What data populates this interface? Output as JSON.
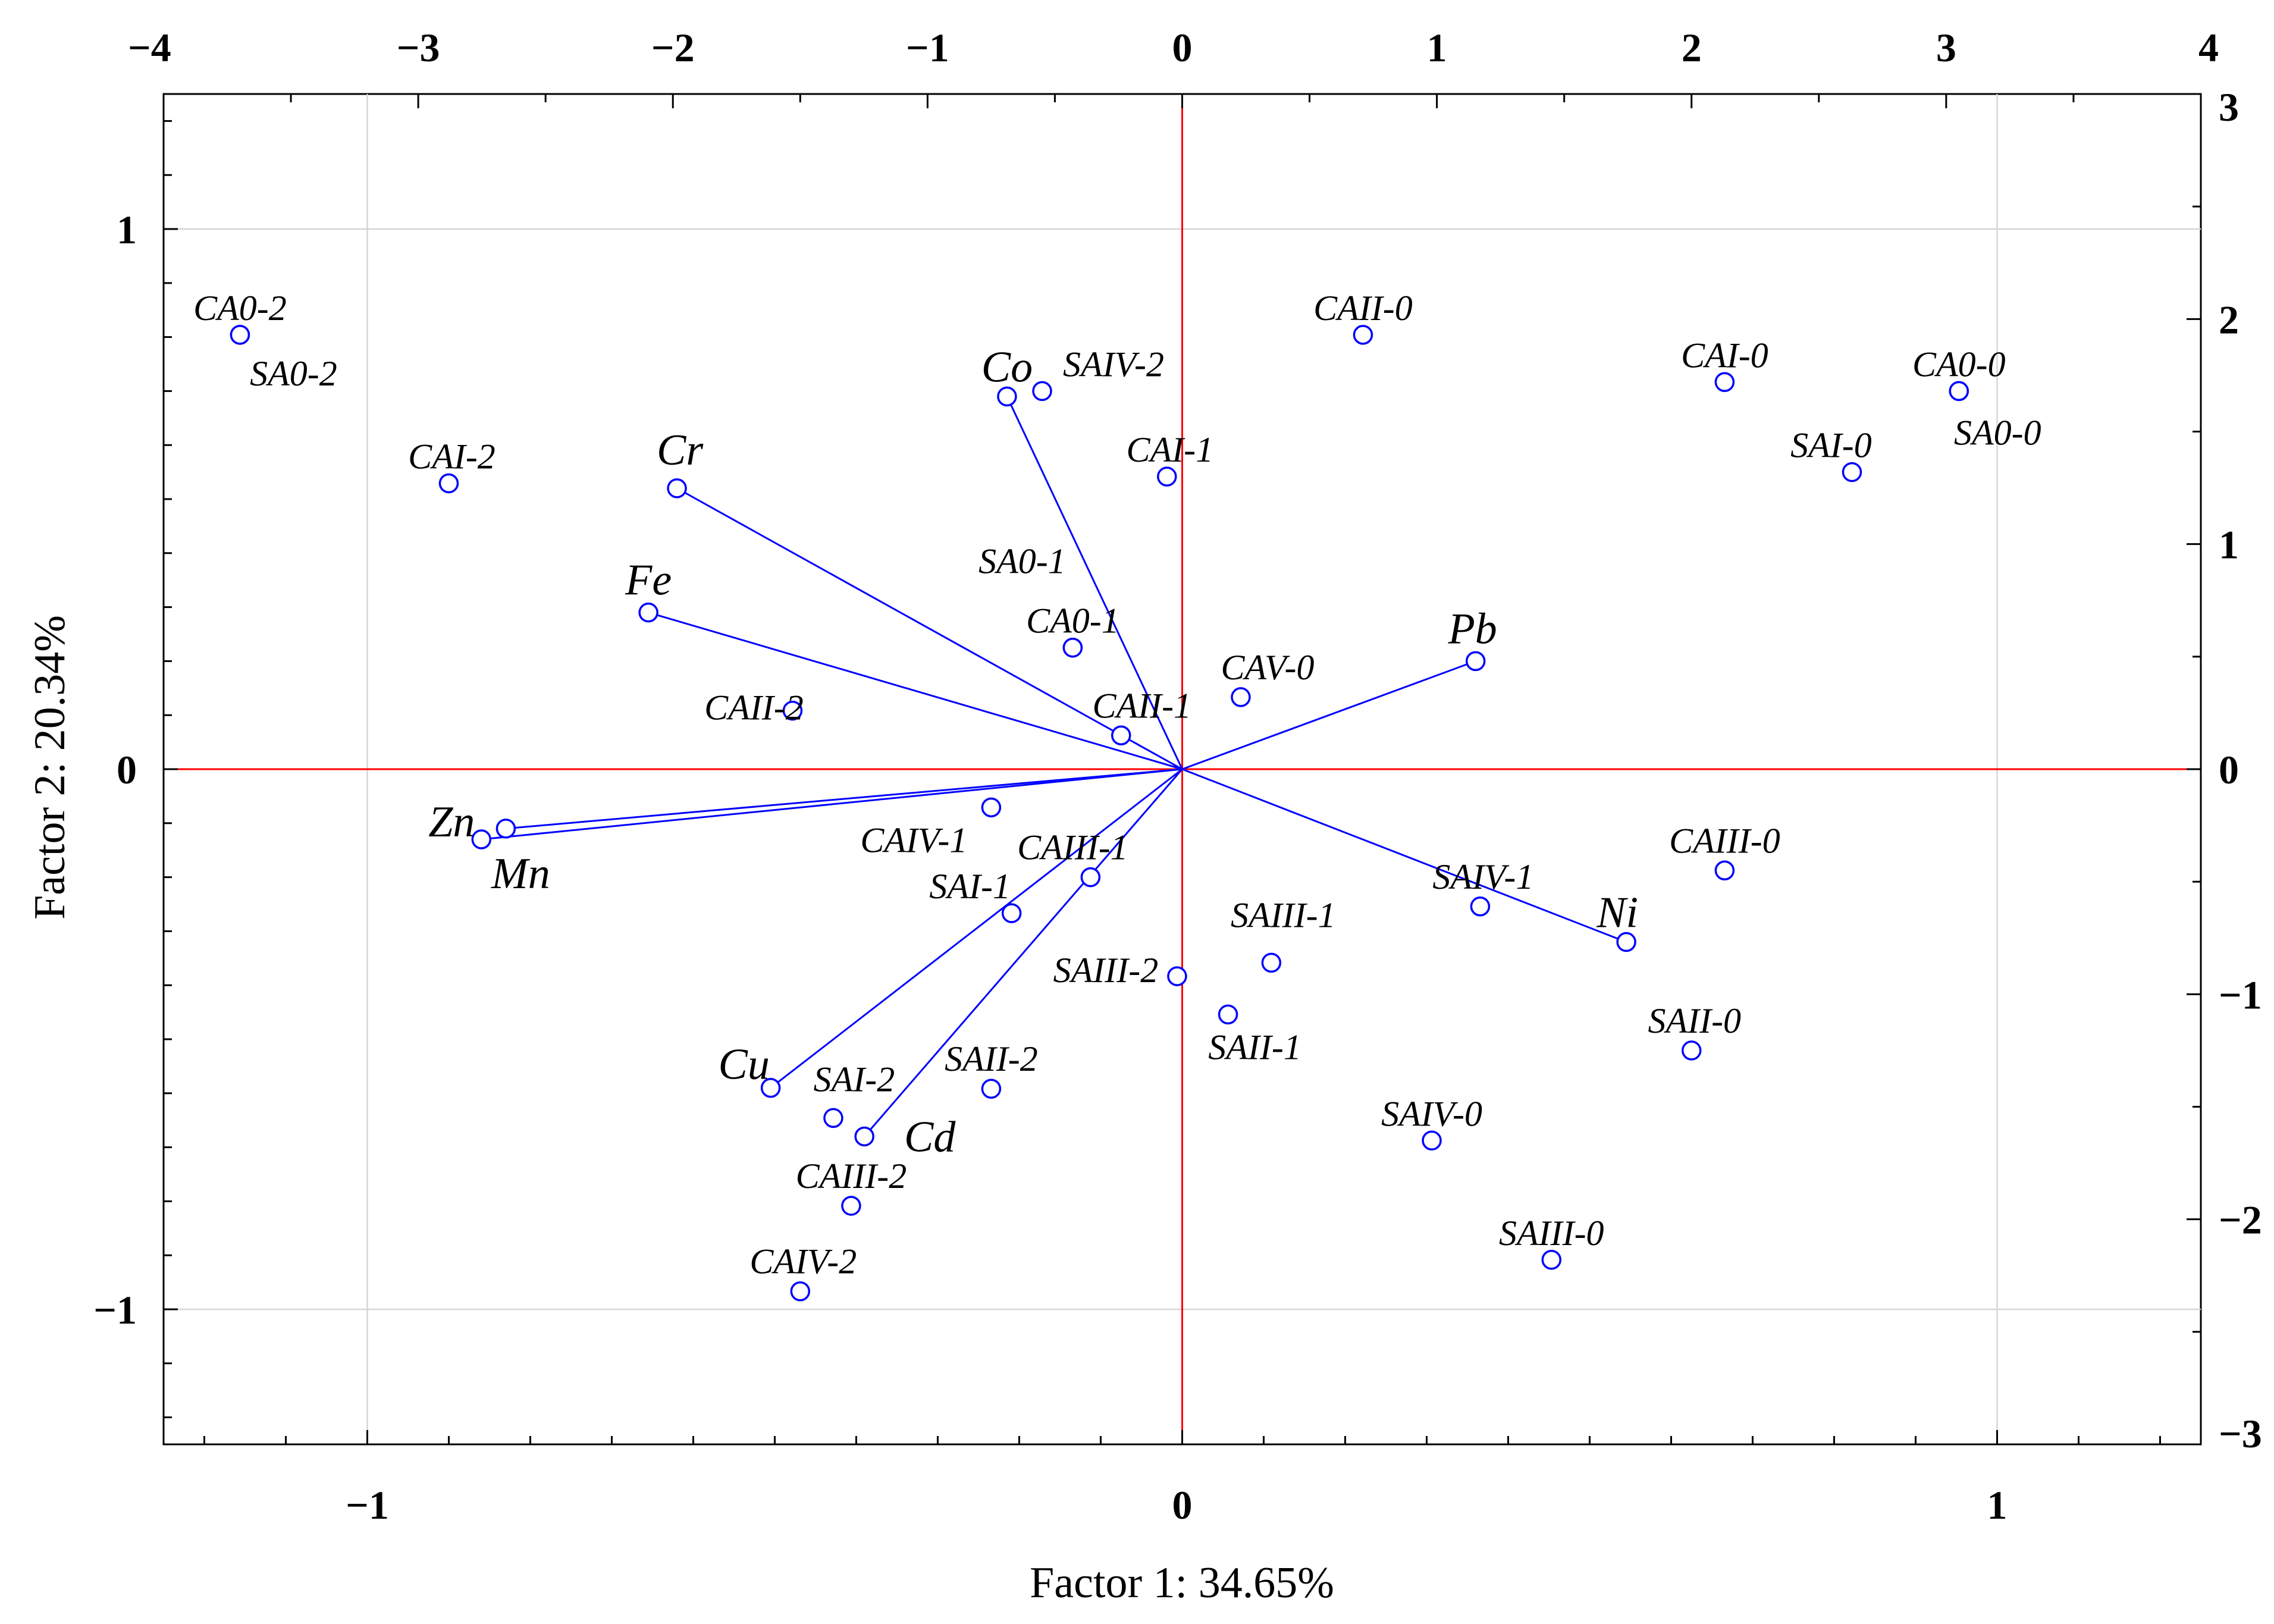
{
  "chart_data": {
    "type": "scatter",
    "subtype": "pca-biplot",
    "xlabel": "Factor 1: 34.65%",
    "ylabel": "Factor 2: 20.34%",
    "xlim": [
      -1.25,
      1.25
    ],
    "ylim": [
      -1.25,
      1.25
    ],
    "x2lim": [
      -4,
      4
    ],
    "y2lim": [
      -3,
      3
    ],
    "bottom_ticks": [
      -1,
      0,
      1
    ],
    "left_ticks": [
      1,
      0,
      -1
    ],
    "top_ticks": [
      -4,
      -3,
      -2,
      -1,
      0,
      1,
      2,
      3,
      4
    ],
    "right_ticks": [
      3,
      2,
      1,
      0,
      -1,
      -2,
      -3
    ],
    "grid": true,
    "zero_lines_color": "#ff0000",
    "vector_color": "#0000ff",
    "marker_color": "#0000ff",
    "variables": [
      {
        "name": "Co",
        "x": -0.215,
        "y": 0.69
      },
      {
        "name": "Cr",
        "x": -0.62,
        "y": 0.52
      },
      {
        "name": "Fe",
        "x": -0.655,
        "y": 0.29
      },
      {
        "name": "Pb",
        "x": 0.36,
        "y": 0.2
      },
      {
        "name": "Zn",
        "x": -0.86,
        "y": -0.13
      },
      {
        "name": "Mn",
        "x": -0.83,
        "y": -0.11
      },
      {
        "name": "Ni",
        "x": 0.545,
        "y": -0.32
      },
      {
        "name": "Cu",
        "x": -0.505,
        "y": -0.59
      },
      {
        "name": "Cd",
        "x": -0.39,
        "y": -0.68
      }
    ],
    "observations": [
      {
        "name": "CA0-2",
        "x": -3.7,
        "y": 1.93
      },
      {
        "name": "SA0-2",
        "x": -3.7,
        "y": 1.93
      },
      {
        "name": "CAI-2",
        "x": -2.88,
        "y": 1.27
      },
      {
        "name": "CAII-2",
        "x": -1.53,
        "y": 0.26
      },
      {
        "name": "SAIV-2",
        "x": -0.55,
        "y": 1.68
      },
      {
        "name": "CAI-1",
        "x": -0.06,
        "y": 1.3
      },
      {
        "name": "SA0-1",
        "x": -0.43,
        "y": 0.54
      },
      {
        "name": "CA0-1",
        "x": -0.43,
        "y": 0.54
      },
      {
        "name": "CAII-1",
        "x": -0.24,
        "y": 0.15
      },
      {
        "name": "CAV-0",
        "x": 0.23,
        "y": 0.32
      },
      {
        "name": "CAII-0",
        "x": 0.71,
        "y": 1.93
      },
      {
        "name": "CAI-0",
        "x": 2.13,
        "y": 1.72
      },
      {
        "name": "CA0-0",
        "x": 3.05,
        "y": 1.68
      },
      {
        "name": "SA0-0",
        "x": 3.05,
        "y": 1.68
      },
      {
        "name": "SAI-0",
        "x": 2.63,
        "y": 1.32
      },
      {
        "name": "CAIV-1",
        "x": -0.75,
        "y": -0.17
      },
      {
        "name": "CAIII-1",
        "x": -0.36,
        "y": -0.48
      },
      {
        "name": "SAI-1",
        "x": -0.67,
        "y": -0.64
      },
      {
        "name": "SAIII-2",
        "x": -0.02,
        "y": -0.92
      },
      {
        "name": "SAIII-1",
        "x": 0.35,
        "y": -0.86
      },
      {
        "name": "SAII-1",
        "x": 0.18,
        "y": -1.09
      },
      {
        "name": "SAIV-1",
        "x": 1.17,
        "y": -0.61
      },
      {
        "name": "CAIII-0",
        "x": 2.13,
        "y": -0.45
      },
      {
        "name": "SAII-0",
        "x": 2.0,
        "y": -1.25
      },
      {
        "name": "SAIV-0",
        "x": 0.98,
        "y": -1.65
      },
      {
        "name": "SAIII-0",
        "x": 1.45,
        "y": -2.18
      },
      {
        "name": "SAI-2",
        "x": -1.37,
        "y": -1.55
      },
      {
        "name": "SAII-2",
        "x": -0.75,
        "y": -1.42
      },
      {
        "name": "CAIII-2",
        "x": -1.3,
        "y": -1.94
      },
      {
        "name": "CAIV-2",
        "x": -1.5,
        "y": -2.32
      }
    ]
  }
}
